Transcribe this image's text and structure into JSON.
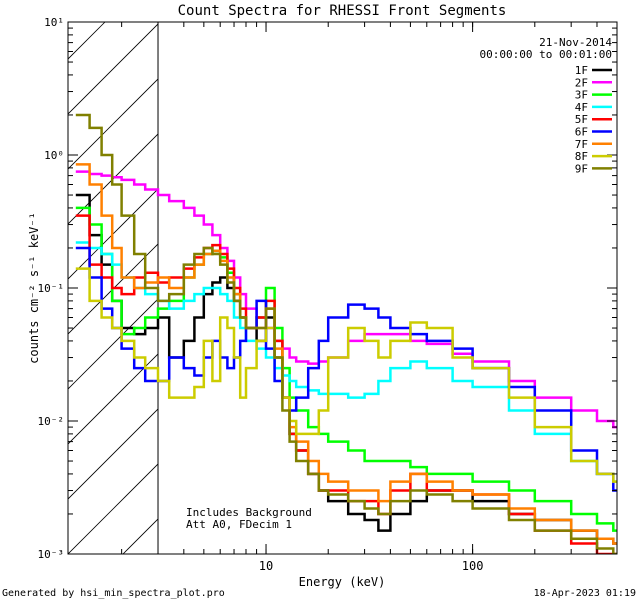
{
  "chart_data": {
    "type": "line",
    "title": "Count Spectra for RHESSI Front Segments",
    "xlabel": "Energy (keV)",
    "ylabel": "counts cm⁻² s⁻¹ keV⁻¹",
    "x_scale": "log",
    "y_scale": "log",
    "xlim": [
      1.1,
      500
    ],
    "ylim": [
      0.001,
      10
    ],
    "x_major_ticks": [
      {
        "value": 10,
        "label": "10"
      },
      {
        "value": 100,
        "label": "100"
      }
    ],
    "y_major_ticks": [
      {
        "value": 0.001,
        "label": "10⁻³"
      },
      {
        "value": 0.01,
        "label": "10⁻²"
      },
      {
        "value": 0.1,
        "label": "10⁻¹"
      },
      {
        "value": 1,
        "label": "10⁰"
      },
      {
        "value": 10,
        "label": "10¹"
      }
    ],
    "hatched_region": {
      "x_from": 1.1,
      "x_to": 3.0
    },
    "date": "21-Nov-2014",
    "time_range": "00:00:00 to 00:01:00",
    "annotations": [
      "Includes Background",
      "Att A0, FDecim 1"
    ],
    "series": [
      {
        "name": "1F",
        "color": "#000000",
        "x": [
          1.2,
          1.4,
          1.6,
          1.8,
          2.0,
          2.3,
          2.6,
          3.0,
          3.4,
          4.0,
          4.5,
          5.0,
          5.5,
          6.0,
          6.5,
          7.0,
          7.5,
          8.0,
          9.0,
          10.0,
          11.0,
          12.0,
          13.0,
          14.0,
          16.0,
          18.0,
          20.0,
          25.0,
          30.0,
          35.0,
          40.0,
          50.0,
          60.0,
          80.0,
          100.0,
          150.0,
          200.0,
          300.0,
          400.0,
          480.0
        ],
        "y": [
          0.5,
          0.25,
          0.15,
          0.08,
          0.05,
          0.045,
          0.05,
          0.06,
          0.03,
          0.04,
          0.06,
          0.09,
          0.11,
          0.12,
          0.1,
          0.08,
          0.06,
          0.05,
          0.04,
          0.06,
          0.03,
          0.015,
          0.008,
          0.006,
          0.004,
          0.003,
          0.0025,
          0.002,
          0.0018,
          0.0015,
          0.002,
          0.0025,
          0.003,
          0.003,
          0.0025,
          0.002,
          0.0018,
          0.0015,
          0.0013,
          0.0012
        ]
      },
      {
        "name": "2F",
        "color": "#ff00ff",
        "x": [
          1.2,
          1.4,
          1.6,
          1.8,
          2.0,
          2.3,
          2.6,
          3.0,
          3.4,
          4.0,
          4.5,
          5.0,
          5.5,
          6.0,
          6.5,
          7.0,
          7.5,
          8.0,
          9.0,
          10.0,
          11.0,
          12.0,
          13.0,
          14.0,
          16.0,
          18.0,
          20.0,
          25.0,
          30.0,
          35.0,
          40.0,
          50.0,
          60.0,
          80.0,
          100.0,
          150.0,
          200.0,
          300.0,
          400.0,
          480.0
        ],
        "y": [
          0.75,
          0.72,
          0.7,
          0.68,
          0.65,
          0.6,
          0.55,
          0.5,
          0.45,
          0.4,
          0.35,
          0.3,
          0.25,
          0.2,
          0.16,
          0.12,
          0.09,
          0.07,
          0.06,
          0.05,
          0.04,
          0.035,
          0.03,
          0.028,
          0.027,
          0.028,
          0.03,
          0.04,
          0.045,
          0.045,
          0.045,
          0.04,
          0.038,
          0.032,
          0.028,
          0.02,
          0.015,
          0.012,
          0.01,
          0.009
        ]
      },
      {
        "name": "3F",
        "color": "#00ff00",
        "x": [
          1.2,
          1.4,
          1.6,
          1.8,
          2.0,
          2.3,
          2.6,
          3.0,
          3.4,
          4.0,
          4.5,
          5.0,
          5.5,
          6.0,
          6.5,
          7.0,
          7.5,
          8.0,
          9.0,
          10.0,
          11.0,
          12.0,
          13.0,
          14.0,
          16.0,
          18.0,
          20.0,
          25.0,
          30.0,
          35.0,
          40.0,
          50.0,
          60.0,
          80.0,
          100.0,
          150.0,
          200.0,
          300.0,
          400.0,
          480.0
        ],
        "y": [
          0.4,
          0.3,
          0.18,
          0.08,
          0.045,
          0.05,
          0.06,
          0.07,
          0.08,
          0.12,
          0.15,
          0.18,
          0.19,
          0.17,
          0.13,
          0.09,
          0.06,
          0.05,
          0.06,
          0.1,
          0.05,
          0.025,
          0.015,
          0.012,
          0.009,
          0.008,
          0.007,
          0.006,
          0.005,
          0.005,
          0.005,
          0.0045,
          0.004,
          0.004,
          0.0035,
          0.003,
          0.0025,
          0.002,
          0.0017,
          0.0015
        ]
      },
      {
        "name": "4F",
        "color": "#00ffff",
        "x": [
          1.2,
          1.4,
          1.6,
          1.8,
          2.0,
          2.3,
          2.6,
          3.0,
          3.4,
          4.0,
          4.5,
          5.0,
          5.5,
          6.0,
          6.5,
          7.0,
          7.5,
          8.0,
          9.0,
          10.0,
          11.0,
          12.0,
          13.0,
          14.0,
          16.0,
          18.0,
          20.0,
          25.0,
          30.0,
          35.0,
          40.0,
          50.0,
          60.0,
          80.0,
          100.0,
          150.0,
          200.0,
          300.0,
          400.0,
          480.0
        ],
        "y": [
          0.22,
          0.2,
          0.18,
          0.15,
          0.12,
          0.1,
          0.09,
          0.08,
          0.07,
          0.08,
          0.09,
          0.1,
          0.1,
          0.09,
          0.08,
          0.06,
          0.05,
          0.04,
          0.035,
          0.03,
          0.025,
          0.022,
          0.02,
          0.018,
          0.017,
          0.016,
          0.016,
          0.015,
          0.016,
          0.02,
          0.025,
          0.028,
          0.025,
          0.02,
          0.018,
          0.012,
          0.008,
          0.005,
          0.004,
          0.0035
        ]
      },
      {
        "name": "5F",
        "color": "#ff0000",
        "x": [
          1.2,
          1.4,
          1.6,
          1.8,
          2.0,
          2.3,
          2.6,
          3.0,
          3.4,
          4.0,
          4.5,
          5.0,
          5.5,
          6.0,
          6.5,
          7.0,
          7.5,
          8.0,
          9.0,
          10.0,
          11.0,
          12.0,
          13.0,
          14.0,
          16.0,
          18.0,
          20.0,
          25.0,
          30.0,
          35.0,
          40.0,
          50.0,
          60.0,
          80.0,
          100.0,
          150.0,
          200.0,
          300.0,
          400.0,
          480.0
        ],
        "y": [
          0.35,
          0.15,
          0.12,
          0.1,
          0.09,
          0.12,
          0.13,
          0.11,
          0.12,
          0.14,
          0.17,
          0.2,
          0.21,
          0.18,
          0.14,
          0.1,
          0.07,
          0.05,
          0.06,
          0.08,
          0.04,
          0.015,
          0.008,
          0.006,
          0.004,
          0.003,
          0.003,
          0.0025,
          0.0025,
          0.002,
          0.003,
          0.004,
          0.003,
          0.003,
          0.0028,
          0.002,
          0.0015,
          0.0012,
          0.001,
          0.001
        ]
      },
      {
        "name": "6F",
        "color": "#0000ff",
        "x": [
          1.2,
          1.4,
          1.6,
          1.8,
          2.0,
          2.3,
          2.6,
          3.0,
          3.4,
          4.0,
          4.5,
          5.0,
          5.5,
          6.0,
          6.5,
          7.0,
          7.5,
          8.0,
          9.0,
          10.0,
          11.0,
          12.0,
          13.0,
          14.0,
          16.0,
          18.0,
          20.0,
          25.0,
          30.0,
          35.0,
          40.0,
          50.0,
          60.0,
          80.0,
          100.0,
          150.0,
          200.0,
          300.0,
          400.0,
          480.0
        ],
        "y": [
          0.2,
          0.12,
          0.07,
          0.05,
          0.035,
          0.025,
          0.02,
          0.02,
          0.03,
          0.025,
          0.022,
          0.03,
          0.04,
          0.03,
          0.025,
          0.03,
          0.04,
          0.05,
          0.08,
          0.035,
          0.02,
          0.015,
          0.012,
          0.015,
          0.025,
          0.04,
          0.06,
          0.075,
          0.07,
          0.06,
          0.05,
          0.045,
          0.04,
          0.035,
          0.025,
          0.018,
          0.012,
          0.006,
          0.004,
          0.003
        ]
      },
      {
        "name": "7F",
        "color": "#ff8000",
        "x": [
          1.2,
          1.4,
          1.6,
          1.8,
          2.0,
          2.3,
          2.6,
          3.0,
          3.4,
          4.0,
          4.5,
          5.0,
          5.5,
          6.0,
          6.5,
          7.0,
          7.5,
          8.0,
          9.0,
          10.0,
          11.0,
          12.0,
          13.0,
          14.0,
          16.0,
          18.0,
          20.0,
          25.0,
          30.0,
          35.0,
          40.0,
          50.0,
          60.0,
          80.0,
          100.0,
          150.0,
          200.0,
          300.0,
          400.0,
          480.0
        ],
        "y": [
          0.85,
          0.6,
          0.35,
          0.2,
          0.12,
          0.1,
          0.11,
          0.12,
          0.1,
          0.12,
          0.15,
          0.18,
          0.19,
          0.16,
          0.12,
          0.09,
          0.06,
          0.05,
          0.05,
          0.07,
          0.035,
          0.015,
          0.009,
          0.007,
          0.005,
          0.004,
          0.0035,
          0.003,
          0.003,
          0.0025,
          0.0035,
          0.004,
          0.0035,
          0.003,
          0.0028,
          0.0022,
          0.0018,
          0.0015,
          0.0013,
          0.0012
        ]
      },
      {
        "name": "8F",
        "color": "#cccc00",
        "x": [
          1.2,
          1.4,
          1.6,
          1.8,
          2.0,
          2.3,
          2.6,
          3.0,
          3.4,
          4.0,
          4.5,
          5.0,
          5.5,
          6.0,
          6.5,
          7.0,
          7.5,
          8.0,
          9.0,
          10.0,
          11.0,
          12.0,
          13.0,
          14.0,
          16.0,
          18.0,
          20.0,
          25.0,
          30.0,
          35.0,
          40.0,
          50.0,
          60.0,
          80.0,
          100.0,
          150.0,
          200.0,
          300.0,
          400.0,
          480.0
        ],
        "y": [
          0.14,
          0.08,
          0.06,
          0.05,
          0.04,
          0.03,
          0.025,
          0.02,
          0.015,
          0.015,
          0.018,
          0.04,
          0.02,
          0.06,
          0.05,
          0.03,
          0.015,
          0.025,
          0.04,
          0.05,
          0.03,
          0.015,
          0.01,
          0.008,
          0.008,
          0.012,
          0.03,
          0.05,
          0.04,
          0.03,
          0.04,
          0.055,
          0.05,
          0.03,
          0.025,
          0.015,
          0.009,
          0.005,
          0.004,
          0.0035
        ]
      },
      {
        "name": "9F",
        "color": "#808000",
        "x": [
          1.2,
          1.4,
          1.6,
          1.8,
          2.0,
          2.3,
          2.6,
          3.0,
          3.4,
          4.0,
          4.5,
          5.0,
          5.5,
          6.0,
          6.5,
          7.0,
          7.5,
          8.0,
          9.0,
          10.0,
          11.0,
          12.0,
          13.0,
          14.0,
          16.0,
          18.0,
          20.0,
          25.0,
          30.0,
          35.0,
          40.0,
          50.0,
          60.0,
          80.0,
          100.0,
          150.0,
          200.0,
          300.0,
          400.0,
          480.0
        ],
        "y": [
          2.0,
          1.6,
          1.0,
          0.6,
          0.35,
          0.18,
          0.1,
          0.08,
          0.09,
          0.15,
          0.18,
          0.2,
          0.18,
          0.15,
          0.11,
          0.08,
          0.06,
          0.05,
          0.05,
          0.07,
          0.03,
          0.012,
          0.007,
          0.005,
          0.004,
          0.003,
          0.0028,
          0.0025,
          0.0022,
          0.002,
          0.0025,
          0.003,
          0.0028,
          0.0025,
          0.0022,
          0.0018,
          0.0015,
          0.0013,
          0.0011,
          0.001
        ]
      }
    ]
  },
  "footer": {
    "generated_by": "Generated by hsi_min_spectra_plot.pro",
    "generated_at": "18-Apr-2023 01:19"
  }
}
